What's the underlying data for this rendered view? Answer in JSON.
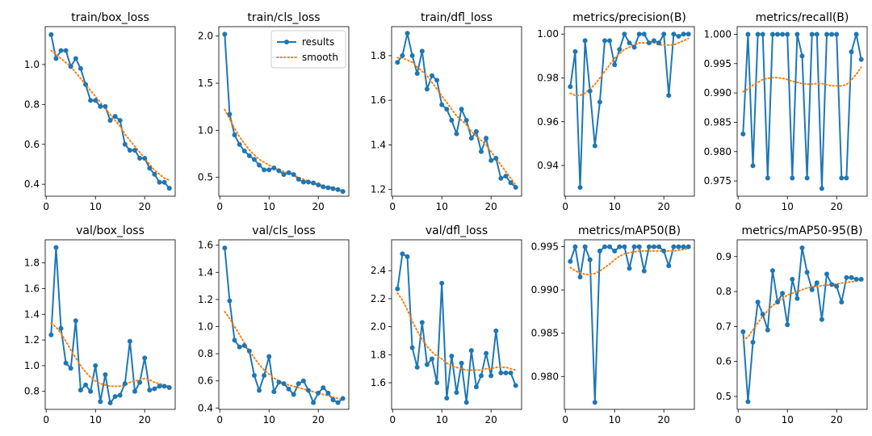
{
  "chart_data": [
    {
      "type": "line",
      "title": "train/box_loss",
      "x": [
        1,
        2,
        3,
        4,
        5,
        6,
        7,
        8,
        9,
        10,
        11,
        12,
        13,
        14,
        15,
        16,
        17,
        18,
        19,
        20,
        21,
        22,
        23,
        24,
        25
      ],
      "series": [
        {
          "name": "results",
          "values": [
            1.15,
            1.03,
            1.07,
            1.07,
            0.99,
            1.03,
            0.98,
            0.9,
            0.82,
            0.82,
            0.79,
            0.79,
            0.72,
            0.74,
            0.72,
            0.6,
            0.57,
            0.57,
            0.53,
            0.53,
            0.48,
            0.45,
            0.41,
            0.41,
            0.38
          ]
        },
        {
          "name": "smooth",
          "values": [
            1.07,
            1.05,
            1.03,
            1.01,
            0.99,
            0.96,
            0.93,
            0.9,
            0.87,
            0.84,
            0.81,
            0.78,
            0.75,
            0.72,
            0.69,
            0.65,
            0.62,
            0.59,
            0.56,
            0.53,
            0.5,
            0.47,
            0.45,
            0.43,
            0.42
          ]
        }
      ],
      "xlim": [
        -0.2,
        26.2
      ],
      "ylim": [
        0.34,
        1.19
      ],
      "xticks": [
        0,
        10,
        20
      ],
      "yticks": [
        0.4,
        0.6,
        0.8,
        1.0
      ],
      "xtick_labels": [
        "0",
        "10",
        "20"
      ],
      "ytick_labels": [
        "0.4",
        "0.6",
        "0.8",
        "1.0"
      ],
      "legend": false
    },
    {
      "type": "line",
      "title": "train/cls_loss",
      "x": [
        1,
        2,
        3,
        4,
        5,
        6,
        7,
        8,
        9,
        10,
        11,
        12,
        13,
        14,
        15,
        16,
        17,
        18,
        19,
        20,
        21,
        22,
        23,
        24,
        25
      ],
      "series": [
        {
          "name": "results",
          "values": [
            2.02,
            1.17,
            0.95,
            0.85,
            0.78,
            0.73,
            0.69,
            0.63,
            0.58,
            0.58,
            0.6,
            0.57,
            0.53,
            0.55,
            0.53,
            0.48,
            0.45,
            0.45,
            0.44,
            0.42,
            0.4,
            0.39,
            0.38,
            0.37,
            0.35
          ]
        },
        {
          "name": "smooth",
          "values": [
            1.22,
            1.12,
            1.02,
            0.93,
            0.86,
            0.79,
            0.74,
            0.69,
            0.66,
            0.63,
            0.6,
            0.58,
            0.56,
            0.54,
            0.52,
            0.5,
            0.48,
            0.46,
            0.44,
            0.43,
            0.41,
            0.4,
            0.39,
            0.37,
            0.36
          ]
        }
      ],
      "xlim": [
        -0.2,
        26.2
      ],
      "ylim": [
        0.3,
        2.1
      ],
      "xticks": [
        0,
        10,
        20
      ],
      "yticks": [
        0.5,
        1.0,
        1.5,
        2.0
      ],
      "xtick_labels": [
        "0",
        "10",
        "20"
      ],
      "ytick_labels": [
        "0.5",
        "1.0",
        "1.5",
        "2.0"
      ],
      "legend": true,
      "legend_loc": "upper right",
      "legend_labels": [
        "results",
        "smooth"
      ]
    },
    {
      "type": "line",
      "title": "train/dfl_loss",
      "x": [
        1,
        2,
        3,
        4,
        5,
        6,
        7,
        8,
        9,
        10,
        11,
        12,
        13,
        14,
        15,
        16,
        17,
        18,
        19,
        20,
        21,
        22,
        23,
        24,
        25
      ],
      "series": [
        {
          "name": "results",
          "values": [
            1.77,
            1.8,
            1.9,
            1.8,
            1.72,
            1.82,
            1.65,
            1.71,
            1.69,
            1.58,
            1.56,
            1.51,
            1.45,
            1.56,
            1.51,
            1.43,
            1.46,
            1.37,
            1.43,
            1.33,
            1.34,
            1.25,
            1.26,
            1.23,
            1.21
          ]
        },
        {
          "name": "smooth",
          "values": [
            1.79,
            1.79,
            1.78,
            1.77,
            1.75,
            1.73,
            1.71,
            1.68,
            1.65,
            1.62,
            1.59,
            1.56,
            1.53,
            1.51,
            1.49,
            1.46,
            1.44,
            1.42,
            1.4,
            1.37,
            1.34,
            1.31,
            1.28,
            1.25,
            1.22
          ]
        }
      ],
      "xlim": [
        -0.2,
        26.2
      ],
      "ylim": [
        1.17,
        1.93
      ],
      "xticks": [
        0,
        10,
        20
      ],
      "yticks": [
        1.2,
        1.4,
        1.6,
        1.8
      ],
      "xtick_labels": [
        "0",
        "10",
        "20"
      ],
      "ytick_labels": [
        "1.2",
        "1.4",
        "1.6",
        "1.8"
      ],
      "legend": false
    },
    {
      "type": "line",
      "title": "metrics/precision(B)",
      "x": [
        1,
        2,
        3,
        4,
        5,
        6,
        7,
        8,
        9,
        10,
        11,
        12,
        13,
        14,
        15,
        16,
        17,
        18,
        19,
        20,
        21,
        22,
        23,
        24,
        25
      ],
      "series": [
        {
          "name": "results",
          "values": [
            0.976,
            0.992,
            0.93,
            0.997,
            0.974,
            0.949,
            0.969,
            0.997,
            0.997,
            0.986,
            0.993,
            1.0,
            0.996,
            0.994,
            1.0,
            1.0,
            0.996,
            0.997,
            0.996,
            1.0,
            0.972,
            1.0,
            0.999,
            1.0,
            1.0
          ]
        },
        {
          "name": "smooth",
          "values": [
            0.973,
            0.972,
            0.972,
            0.973,
            0.975,
            0.977,
            0.98,
            0.983,
            0.986,
            0.989,
            0.991,
            0.993,
            0.994,
            0.995,
            0.996,
            0.996,
            0.996,
            0.996,
            0.995,
            0.995,
            0.995,
            0.995,
            0.996,
            0.997,
            0.998
          ]
        }
      ],
      "xlim": [
        -0.2,
        26.2
      ],
      "ylim": [
        0.926,
        1.0034
      ],
      "xticks": [
        0,
        10,
        20
      ],
      "yticks": [
        0.94,
        0.96,
        0.98,
        1.0
      ],
      "xtick_labels": [
        "0",
        "10",
        "20"
      ],
      "ytick_labels": [
        "0.94",
        "0.96",
        "0.98",
        "1.00"
      ],
      "legend": false
    },
    {
      "type": "line",
      "title": "metrics/recall(B)",
      "x": [
        1,
        2,
        3,
        4,
        5,
        6,
        7,
        8,
        9,
        10,
        11,
        12,
        13,
        14,
        15,
        16,
        17,
        18,
        19,
        20,
        21,
        22,
        23,
        24,
        25
      ],
      "series": [
        {
          "name": "results",
          "values": [
            0.983,
            1.0,
            0.9776,
            1.0,
            1.0,
            0.9755,
            1.0,
            1.0,
            1.0,
            1.0,
            0.9755,
            1.0,
            0.9963,
            0.9755,
            1.0,
            1.0,
            0.9737,
            1.0,
            1.0,
            1.0,
            0.9755,
            0.9755,
            0.997,
            1.0,
            0.9957
          ]
        },
        {
          "name": "smooth",
          "values": [
            0.9902,
            0.9907,
            0.9913,
            0.9918,
            0.9923,
            0.9925,
            0.9926,
            0.9926,
            0.9925,
            0.9923,
            0.992,
            0.9918,
            0.9916,
            0.9915,
            0.9915,
            0.9916,
            0.9916,
            0.9914,
            0.9912,
            0.9912,
            0.9912,
            0.9914,
            0.9922,
            0.9932,
            0.9944
          ]
        }
      ],
      "xlim": [
        -0.2,
        26.2
      ],
      "ylim": [
        0.9724,
        1.0013
      ],
      "xticks": [
        0,
        10,
        20
      ],
      "yticks": [
        0.975,
        0.98,
        0.985,
        0.99,
        0.995,
        1.0
      ],
      "xtick_labels": [
        "0",
        "10",
        "20"
      ],
      "ytick_labels": [
        "0.975",
        "0.980",
        "0.985",
        "0.990",
        "0.995",
        "1.000"
      ],
      "legend": false
    },
    {
      "type": "line",
      "title": "val/box_loss",
      "x": [
        1,
        2,
        3,
        4,
        5,
        6,
        7,
        8,
        9,
        10,
        11,
        12,
        13,
        14,
        15,
        16,
        17,
        18,
        19,
        20,
        21,
        22,
        23,
        24,
        25
      ],
      "series": [
        {
          "name": "results",
          "values": [
            1.24,
            1.92,
            1.29,
            1.02,
            0.98,
            1.35,
            0.81,
            0.85,
            0.8,
            1.0,
            0.72,
            0.93,
            0.71,
            0.76,
            0.77,
            0.86,
            1.19,
            0.8,
            0.87,
            1.06,
            0.81,
            0.82,
            0.84,
            0.84,
            0.83
          ]
        },
        {
          "name": "smooth",
          "values": [
            1.33,
            1.3,
            1.25,
            1.19,
            1.12,
            1.06,
            1.0,
            0.95,
            0.91,
            0.88,
            0.86,
            0.85,
            0.84,
            0.84,
            0.84,
            0.85,
            0.87,
            0.88,
            0.89,
            0.9,
            0.89,
            0.87,
            0.86,
            0.85,
            0.84
          ]
        }
      ],
      "xlim": [
        -0.2,
        26.2
      ],
      "ylim": [
        0.66,
        1.98
      ],
      "xticks": [
        0,
        10,
        20
      ],
      "yticks": [
        0.8,
        1.0,
        1.2,
        1.4,
        1.6,
        1.8
      ],
      "xtick_labels": [
        "0",
        "10",
        "20"
      ],
      "ytick_labels": [
        "0.8",
        "1.0",
        "1.2",
        "1.4",
        "1.6",
        "1.8"
      ],
      "legend": false
    },
    {
      "type": "line",
      "title": "val/cls_loss",
      "x": [
        1,
        2,
        3,
        4,
        5,
        6,
        7,
        8,
        9,
        10,
        11,
        12,
        13,
        14,
        15,
        16,
        17,
        18,
        19,
        20,
        21,
        22,
        23,
        24,
        25
      ],
      "series": [
        {
          "name": "results",
          "values": [
            1.58,
            1.19,
            0.9,
            0.85,
            0.86,
            0.82,
            0.64,
            0.53,
            0.64,
            0.78,
            0.52,
            0.59,
            0.58,
            0.54,
            0.5,
            0.58,
            0.6,
            0.53,
            0.44,
            0.51,
            0.55,
            0.51,
            0.46,
            0.44,
            0.47
          ]
        },
        {
          "name": "smooth",
          "values": [
            1.11,
            1.06,
            1.0,
            0.94,
            0.88,
            0.82,
            0.77,
            0.72,
            0.68,
            0.65,
            0.62,
            0.6,
            0.58,
            0.57,
            0.56,
            0.55,
            0.54,
            0.53,
            0.52,
            0.51,
            0.5,
            0.49,
            0.48,
            0.47,
            0.46
          ]
        }
      ],
      "xlim": [
        -0.2,
        26.2
      ],
      "ylim": [
        0.39,
        1.64
      ],
      "xticks": [
        0,
        10,
        20
      ],
      "yticks": [
        0.4,
        0.6,
        0.8,
        1.0,
        1.2,
        1.4,
        1.6
      ],
      "xtick_labels": [
        "0",
        "10",
        "20"
      ],
      "ytick_labels": [
        "0.4",
        "0.6",
        "0.8",
        "1.0",
        "1.2",
        "1.4",
        "1.6"
      ],
      "legend": false
    },
    {
      "type": "line",
      "title": "val/dfl_loss",
      "x": [
        1,
        2,
        3,
        4,
        5,
        6,
        7,
        8,
        9,
        10,
        11,
        12,
        13,
        14,
        15,
        16,
        17,
        18,
        19,
        20,
        21,
        22,
        23,
        24,
        25
      ],
      "series": [
        {
          "name": "results",
          "values": [
            2.27,
            2.52,
            2.5,
            1.85,
            1.71,
            2.03,
            1.73,
            1.77,
            1.6,
            2.31,
            1.49,
            1.79,
            1.53,
            1.74,
            1.46,
            1.83,
            1.57,
            1.65,
            1.81,
            1.65,
            1.97,
            1.67,
            1.67,
            1.67,
            1.58
          ]
        },
        {
          "name": "smooth",
          "values": [
            2.24,
            2.19,
            2.12,
            2.04,
            1.97,
            1.91,
            1.86,
            1.82,
            1.79,
            1.77,
            1.74,
            1.72,
            1.71,
            1.7,
            1.69,
            1.69,
            1.69,
            1.69,
            1.7,
            1.7,
            1.71,
            1.71,
            1.71,
            1.7,
            1.69
          ]
        }
      ],
      "xlim": [
        -0.2,
        26.2
      ],
      "ylim": [
        1.41,
        2.62
      ],
      "xticks": [
        0,
        10,
        20
      ],
      "yticks": [
        1.6,
        1.8,
        2.0,
        2.2,
        2.4
      ],
      "xtick_labels": [
        "0",
        "10",
        "20"
      ],
      "ytick_labels": [
        "1.6",
        "1.8",
        "2.0",
        "2.2",
        "2.4"
      ],
      "legend": false
    },
    {
      "type": "line",
      "title": "metrics/mAP50(B)",
      "x": [
        1,
        2,
        3,
        4,
        5,
        6,
        7,
        8,
        9,
        10,
        11,
        12,
        13,
        14,
        15,
        16,
        17,
        18,
        19,
        20,
        21,
        22,
        23,
        24,
        25
      ],
      "series": [
        {
          "name": "results",
          "values": [
            0.9933,
            0.995,
            0.9915,
            0.995,
            0.9935,
            0.977,
            0.9945,
            0.995,
            0.995,
            0.9945,
            0.995,
            0.995,
            0.9925,
            0.995,
            0.995,
            0.9922,
            0.995,
            0.995,
            0.995,
            0.9945,
            0.9928,
            0.995,
            0.995,
            0.995,
            0.995
          ]
        },
        {
          "name": "smooth",
          "values": [
            0.9926,
            0.9922,
            0.992,
            0.9918,
            0.9918,
            0.9919,
            0.9922,
            0.9926,
            0.993,
            0.9935,
            0.9939,
            0.9942,
            0.9943,
            0.9944,
            0.9945,
            0.9945,
            0.9945,
            0.9945,
            0.9945,
            0.9945,
            0.9945,
            0.9945,
            0.9946,
            0.9947,
            0.9948
          ]
        }
      ],
      "xlim": [
        -0.2,
        26.2
      ],
      "ylim": [
        0.9762,
        0.9958
      ],
      "xticks": [
        0,
        10,
        20
      ],
      "yticks": [
        0.98,
        0.985,
        0.99,
        0.995
      ],
      "xtick_labels": [
        "0",
        "10",
        "20"
      ],
      "ytick_labels": [
        "0.980",
        "0.985",
        "0.990",
        "0.995"
      ],
      "legend": false
    },
    {
      "type": "line",
      "title": "metrics/mAP50-95(B)",
      "x": [
        1,
        2,
        3,
        4,
        5,
        6,
        7,
        8,
        9,
        10,
        11,
        12,
        13,
        14,
        15,
        16,
        17,
        18,
        19,
        20,
        21,
        22,
        23,
        24,
        25
      ],
      "series": [
        {
          "name": "results",
          "values": [
            0.685,
            0.485,
            0.655,
            0.77,
            0.735,
            0.69,
            0.86,
            0.77,
            0.795,
            0.705,
            0.835,
            0.78,
            0.925,
            0.855,
            0.805,
            0.825,
            0.72,
            0.85,
            0.82,
            0.815,
            0.77,
            0.84,
            0.84,
            0.835,
            0.835
          ]
        },
        {
          "name": "smooth",
          "values": [
            0.66,
            0.67,
            0.69,
            0.71,
            0.73,
            0.745,
            0.76,
            0.77,
            0.78,
            0.79,
            0.795,
            0.8,
            0.805,
            0.81,
            0.813,
            0.815,
            0.817,
            0.818,
            0.82,
            0.822,
            0.824,
            0.826,
            0.828,
            0.83,
            0.832
          ]
        }
      ],
      "xlim": [
        -0.2,
        26.2
      ],
      "ylim": [
        0.463,
        0.948
      ],
      "xticks": [
        0,
        10,
        20
      ],
      "yticks": [
        0.5,
        0.6,
        0.7,
        0.8,
        0.9
      ],
      "xtick_labels": [
        "0",
        "10",
        "20"
      ],
      "ytick_labels": [
        "0.5",
        "0.6",
        "0.7",
        "0.8",
        "0.9"
      ],
      "legend": false
    }
  ],
  "colors": {
    "results": "#1f77b4",
    "smooth": "#ff7f0e",
    "axes": "#000000",
    "background": "#ffffff"
  }
}
